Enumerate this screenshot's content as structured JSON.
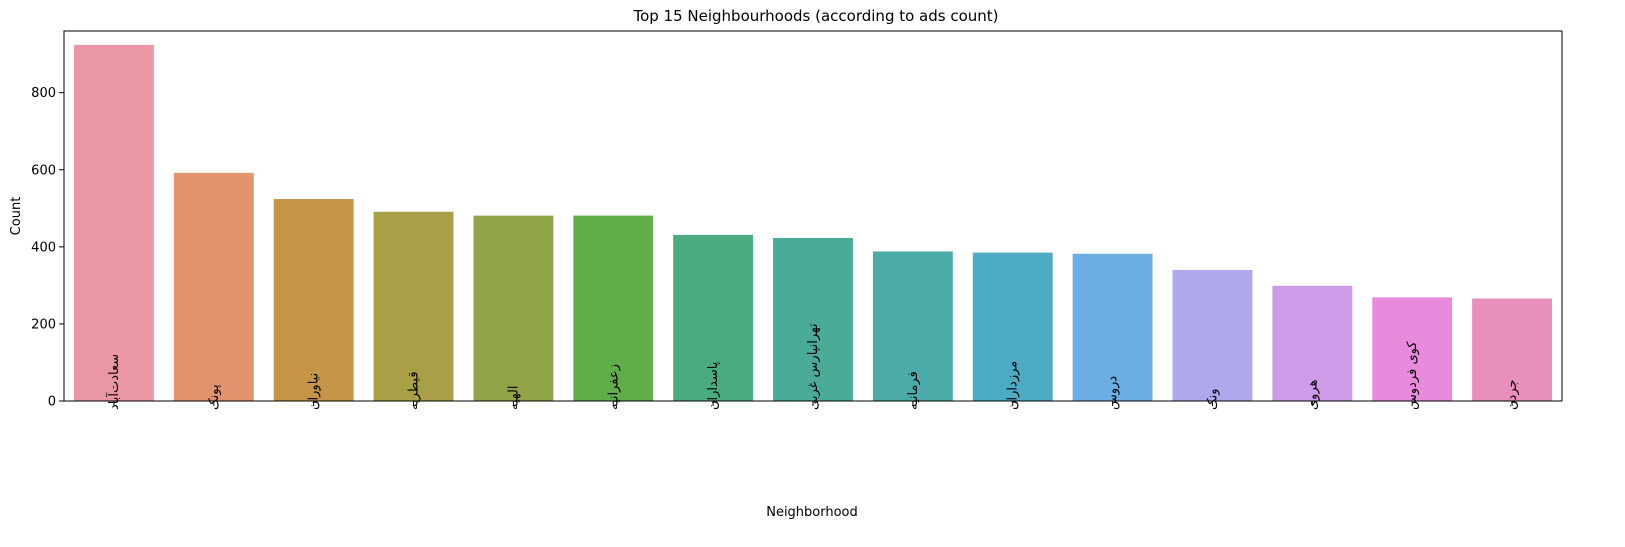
{
  "chart_data": {
    "type": "bar",
    "title": "Top 15 Neighbourhoods (according to ads count)",
    "xlabel": "Neighborhood",
    "ylabel": "Count",
    "ylim": [
      0,
      960
    ],
    "yticks": [
      0,
      200,
      400,
      600,
      800
    ],
    "categories": [
      "سعادت‌آباد",
      "پونک",
      "نیاوران",
      "قیطریه",
      "الهیه",
      "زعفرانیه",
      "پاسداران",
      "تهرانپارس غربی",
      "فرمانیه",
      "مرزداران",
      "دروس",
      "ونک",
      "هروی",
      "کوی فردوس",
      "جردن"
    ],
    "values": [
      924,
      592,
      524,
      491,
      481,
      481,
      431,
      423,
      388,
      385,
      382,
      340,
      299,
      269,
      266
    ],
    "colors": [
      "#ea96a3",
      "#e3946e",
      "#c69648",
      "#a99f46",
      "#91a548",
      "#61ad49",
      "#4aaa80",
      "#4aab98",
      "#4aaba9",
      "#4dabc3",
      "#6aaee3",
      "#ada9ec",
      "#cd9be8",
      "#e88bdd",
      "#e88fbd"
    ],
    "grid": false,
    "legend": "none"
  }
}
